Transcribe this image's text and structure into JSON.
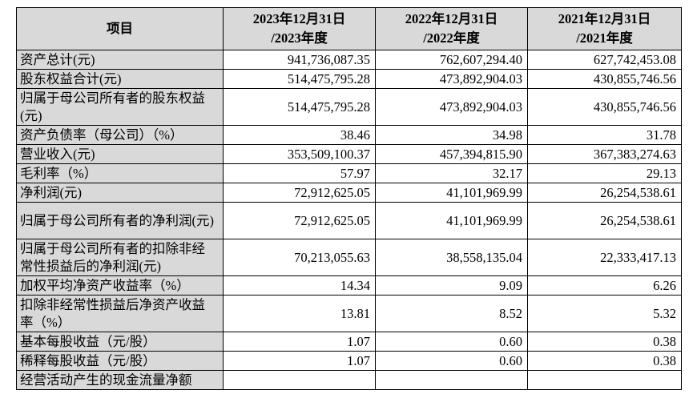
{
  "header": {
    "item": "项目",
    "col1_line1": "2023年12月31日",
    "col1_line2": "/2023年度",
    "col2_line1": "2022年12月31日",
    "col2_line2": "/2022年度",
    "col3_line1": "2021年12月31日",
    "col3_line2": "/2021年度"
  },
  "rows": [
    {
      "label": "资产总计(元)",
      "v1": "941,736,087.35",
      "v2": "762,607,294.40",
      "v3": "627,742,453.08"
    },
    {
      "label": "股东权益合计(元)",
      "v1": "514,475,795.28",
      "v2": "473,892,904.03",
      "v3": "430,855,746.56"
    },
    {
      "label": "归属于母公司所有者的股东权益(元)",
      "v1": "514,475,795.28",
      "v2": "473,892,904.03",
      "v3": "430,855,746.56"
    },
    {
      "label": "资产负债率（母公司）（%）",
      "v1": "38.46",
      "v2": "34.98",
      "v3": "31.78"
    },
    {
      "label": "营业收入(元)",
      "v1": "353,509,100.37",
      "v2": "457,394,815.90",
      "v3": "367,383,274.63"
    },
    {
      "label": "毛利率（%）",
      "v1": "57.97",
      "v2": "32.17",
      "v3": "29.13"
    },
    {
      "label": "净利润(元)",
      "v1": "72,912,625.05",
      "v2": "41,101,969.99",
      "v3": "26,254,538.61"
    },
    {
      "label": "归属于母公司所有者的净利润(元)",
      "v1": "72,912,625.05",
      "v2": "41,101,969.99",
      "v3": "26,254,538.61"
    },
    {
      "label": "归属于母公司所有者的扣除非经常性损益后的净利润(元)",
      "v1": "70,213,055.63",
      "v2": "38,558,135.04",
      "v3": "22,333,417.13"
    },
    {
      "label": "加权平均净资产收益率（%）",
      "v1": "14.34",
      "v2": "9.09",
      "v3": "6.26"
    },
    {
      "label": "扣除非经常性损益后净资产收益率（%）",
      "v1": "13.81",
      "v2": "8.52",
      "v3": "5.32"
    },
    {
      "label": "基本每股收益（元/股）",
      "v1": "1.07",
      "v2": "0.60",
      "v3": "0.38"
    },
    {
      "label": "稀释每股收益（元/股）",
      "v1": "1.07",
      "v2": "0.60",
      "v3": "0.38"
    },
    {
      "label": "经营活动产生的现金流量净额",
      "v1": "",
      "v2": "",
      "v3": ""
    }
  ]
}
